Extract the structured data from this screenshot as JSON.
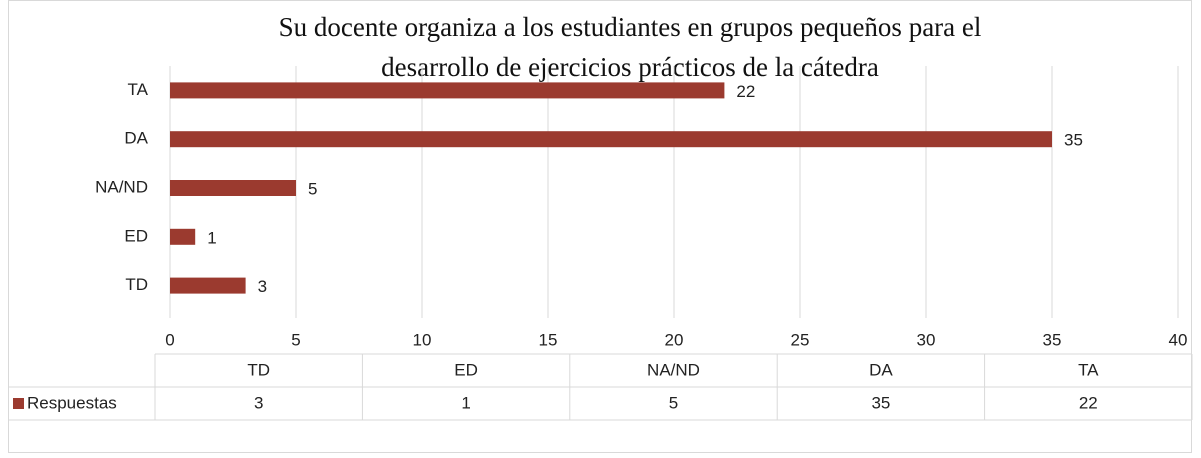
{
  "chart_data": {
    "type": "bar",
    "orientation": "horizontal",
    "title": [
      "Su docente organiza a los estudiantes en grupos pequeños para el",
      "desarrollo de ejercicios prácticos de la cátedra"
    ],
    "categories": [
      "TD",
      "ED",
      "NA/ND",
      "DA",
      "TA"
    ],
    "series": [
      {
        "name": "Respuestas",
        "color": "#9b3a2f",
        "values": [
          3,
          1,
          5,
          35,
          22
        ]
      }
    ],
    "xlim": [
      0,
      40
    ],
    "xticks": [
      0,
      5,
      10,
      15,
      20,
      25,
      30,
      35,
      40
    ],
    "grid": true,
    "data_table": true
  }
}
